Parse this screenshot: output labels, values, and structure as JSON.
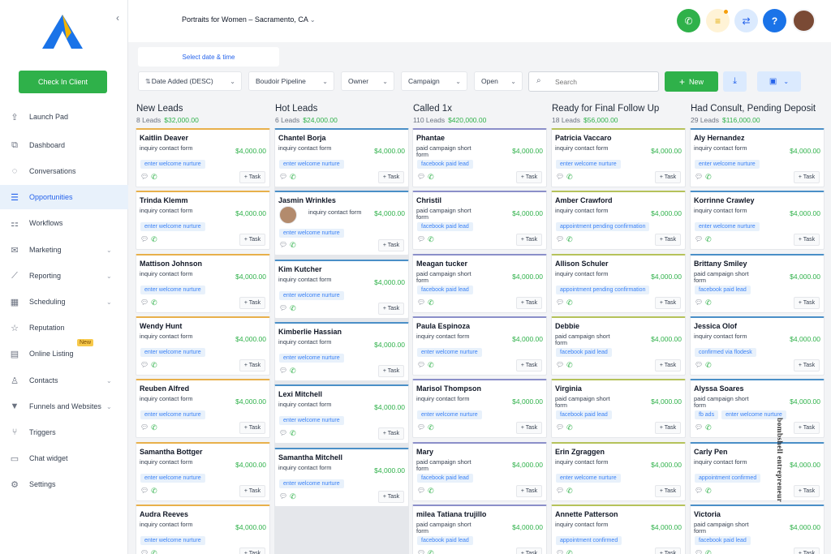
{
  "location": "Portraits for Women – Sacramento, CA",
  "sidebar": {
    "check_in": "Check In Client",
    "items": [
      {
        "label": "Launch Pad",
        "icon": "rocket-icon",
        "chev": false
      },
      {
        "label": "Dashboard",
        "icon": "dashboard-icon",
        "chev": false
      },
      {
        "label": "Conversations",
        "icon": "chat-icon",
        "chev": false
      },
      {
        "label": "Opportunities",
        "icon": "layers-icon",
        "chev": false,
        "active": true
      },
      {
        "label": "Workflows",
        "icon": "sitemap-icon",
        "chev": false
      },
      {
        "label": "Marketing",
        "icon": "mail-icon",
        "chev": true
      },
      {
        "label": "Reporting",
        "icon": "chart-icon",
        "chev": true
      },
      {
        "label": "Scheduling",
        "icon": "calendar-icon",
        "chev": true
      },
      {
        "label": "Reputation",
        "icon": "star-icon",
        "chev": false
      },
      {
        "label": "Online Listing",
        "icon": "listing-icon",
        "chev": false,
        "badge": "New"
      },
      {
        "label": "Contacts",
        "icon": "person-icon",
        "chev": true
      },
      {
        "label": "Funnels and Websites",
        "icon": "funnel-icon",
        "chev": true
      },
      {
        "label": "Triggers",
        "icon": "trigger-icon",
        "chev": false
      },
      {
        "label": "Chat widget",
        "icon": "widget-icon",
        "chev": false
      },
      {
        "label": "Settings",
        "icon": "gear-icon",
        "chev": false
      }
    ]
  },
  "toolbar": {
    "date_link": "Select date & time",
    "filters": [
      "Date Added (DESC)",
      "Boudoir Pipeline",
      "Owner",
      "Campaign",
      "Open"
    ],
    "search_placeholder": "Search",
    "new_label": "New"
  },
  "columns": [
    {
      "title": "New Leads",
      "count": "8 Leads",
      "amount": "$32,000.00",
      "color": "#e8b04b",
      "cards": [
        {
          "name": "Kaitlin Deaver",
          "source": "inquiry contact form",
          "value": "$4,000.00",
          "tags": [
            "enter welcome nurture"
          ]
        },
        {
          "name": "Trinda Klemm",
          "source": "inquiry contact form",
          "value": "$4,000.00",
          "tags": [
            "enter welcome nurture"
          ]
        },
        {
          "name": "Mattison Johnson",
          "source": "inquiry contact form",
          "value": "$4,000.00",
          "tags": [
            "enter welcome nurture"
          ]
        },
        {
          "name": "Wendy Hunt",
          "source": "inquiry contact form",
          "value": "$4,000.00",
          "tags": [
            "enter welcome nurture"
          ]
        },
        {
          "name": "Reuben Alfred",
          "source": "inquiry contact form",
          "value": "$4,000.00",
          "tags": [
            "enter welcome nurture"
          ]
        },
        {
          "name": "Samantha Bottger",
          "source": "inquiry contact form",
          "value": "$4,000.00",
          "tags": [
            "enter welcome nurture"
          ]
        },
        {
          "name": "Audra Reeves",
          "source": "inquiry contact form",
          "value": "$4,000.00",
          "tags": [
            "enter welcome nurture"
          ]
        }
      ]
    },
    {
      "title": "Hot Leads",
      "count": "6 Leads",
      "amount": "$24,000.00",
      "color": "#4a8fc7",
      "cards": [
        {
          "name": "Chantel Borja",
          "source": "inquiry contact form",
          "value": "$4,000.00",
          "tags": [
            "enter welcome nurture"
          ]
        },
        {
          "name": "Jasmin Wrinkles",
          "source": "inquiry contact form",
          "value": "$4,000.00",
          "tags": [
            "enter welcome nurture"
          ],
          "avatar": true
        },
        {
          "name": "Kim Kutcher",
          "source": "inquiry contact form",
          "value": "$4,000.00",
          "tags": [
            "enter welcome nurture"
          ]
        },
        {
          "name": "Kimberlie Hassian",
          "source": "inquiry contact form",
          "value": "$4,000.00",
          "tags": [
            "enter welcome nurture"
          ]
        },
        {
          "name": "Lexi Mitchell",
          "source": "inquiry contact form",
          "value": "$4,000.00",
          "tags": [
            "enter welcome nurture"
          ]
        },
        {
          "name": "Samantha Mitchell",
          "source": "inquiry contact form",
          "value": "$4,000.00",
          "tags": [
            "enter welcome nurture"
          ]
        }
      ]
    },
    {
      "title": "Called 1x",
      "count": "110 Leads",
      "amount": "$420,000.00",
      "color": "#8b8fc9",
      "cards": [
        {
          "name": "Phantae",
          "source": "paid campaign short form",
          "value": "$4,000.00",
          "tags": [
            "facebook paid lead"
          ]
        },
        {
          "name": "Christil",
          "source": "paid campaign short form",
          "value": "$4,000.00",
          "tags": [
            "facebook paid lead"
          ]
        },
        {
          "name": "Meagan tucker",
          "source": "paid campaign short form",
          "value": "$4,000.00",
          "tags": [
            "facebook paid lead"
          ]
        },
        {
          "name": "Paula Espinoza",
          "source": "inquiry contact form",
          "value": "$4,000.00",
          "tags": [
            "enter welcome nurture"
          ]
        },
        {
          "name": "Marisol Thompson",
          "source": "inquiry contact form",
          "value": "$4,000.00",
          "tags": [
            "enter welcome nurture"
          ]
        },
        {
          "name": "Mary",
          "source": "paid campaign short form",
          "value": "$4,000.00",
          "tags": [
            "facebook paid lead"
          ]
        },
        {
          "name": "milea Tatiana trujillo",
          "source": "paid campaign short form",
          "value": "$4,000.00",
          "tags": [
            "facebook paid lead"
          ]
        }
      ]
    },
    {
      "title": "Ready for Final Follow Up",
      "count": "18 Leads",
      "amount": "$56,000.00",
      "color": "#b5c25a",
      "cards": [
        {
          "name": "Patricia Vaccaro",
          "source": "inquiry contact form",
          "value": "$4,000.00",
          "tags": [
            "enter welcome nurture"
          ]
        },
        {
          "name": "Amber Crawford",
          "source": "inquiry contact form",
          "value": "$4,000.00",
          "tags": [
            "appointment pending confirmation"
          ]
        },
        {
          "name": "Allison Schuler",
          "source": "inquiry contact form",
          "value": "$4,000.00",
          "tags": [
            "appointment pending confirmation"
          ]
        },
        {
          "name": "Debbie",
          "source": "paid campaign short form",
          "value": "$4,000.00",
          "tags": [
            "facebook paid lead"
          ]
        },
        {
          "name": "Virginia",
          "source": "paid campaign short form",
          "value": "$4,000.00",
          "tags": [
            "facebook paid lead"
          ]
        },
        {
          "name": "Erin Zgraggen",
          "source": "inquiry contact form",
          "value": "$4,000.00",
          "tags": [
            "enter welcome nurture"
          ]
        },
        {
          "name": "Annette Patterson",
          "source": "inquiry contact form",
          "value": "$4,000.00",
          "tags": [
            "appointment confirmed"
          ]
        }
      ]
    },
    {
      "title": "Had Consult, Pending Deposit",
      "count": "29 Leads",
      "amount": "$116,000.00",
      "color": "#4a8fc7",
      "cards": [
        {
          "name": "Aly Hernandez",
          "source": "inquiry contact form",
          "value": "$4,000.00",
          "tags": [
            "enter welcome nurture"
          ]
        },
        {
          "name": "Korrinne Crawley",
          "source": "inquiry contact form",
          "value": "$4,000.00",
          "tags": [
            "enter welcome nurture"
          ]
        },
        {
          "name": "Brittany Smiley",
          "source": "paid campaign short form",
          "value": "$4,000.00",
          "tags": [
            "facebook paid lead"
          ]
        },
        {
          "name": "Jessica Olof",
          "source": "inquiry contact form",
          "value": "$4,000.00",
          "tags": [
            "confirmed via flodesk"
          ]
        },
        {
          "name": "Alyssa Soares",
          "source": "paid campaign short form",
          "value": "$4,000.00",
          "tags": [
            "fb ads",
            "enter welcome nurture"
          ]
        },
        {
          "name": "Carly Pen",
          "source": "inquiry contact form",
          "value": "$4,000.00",
          "tags": [
            "appointment confirmed"
          ]
        },
        {
          "name": "Victoria",
          "source": "paid campaign short form",
          "value": "$4,000.00",
          "tags": [
            "facebook paid lead"
          ]
        }
      ]
    }
  ],
  "task_label": "+ Task",
  "watermark": "bombshell entrepreneur"
}
